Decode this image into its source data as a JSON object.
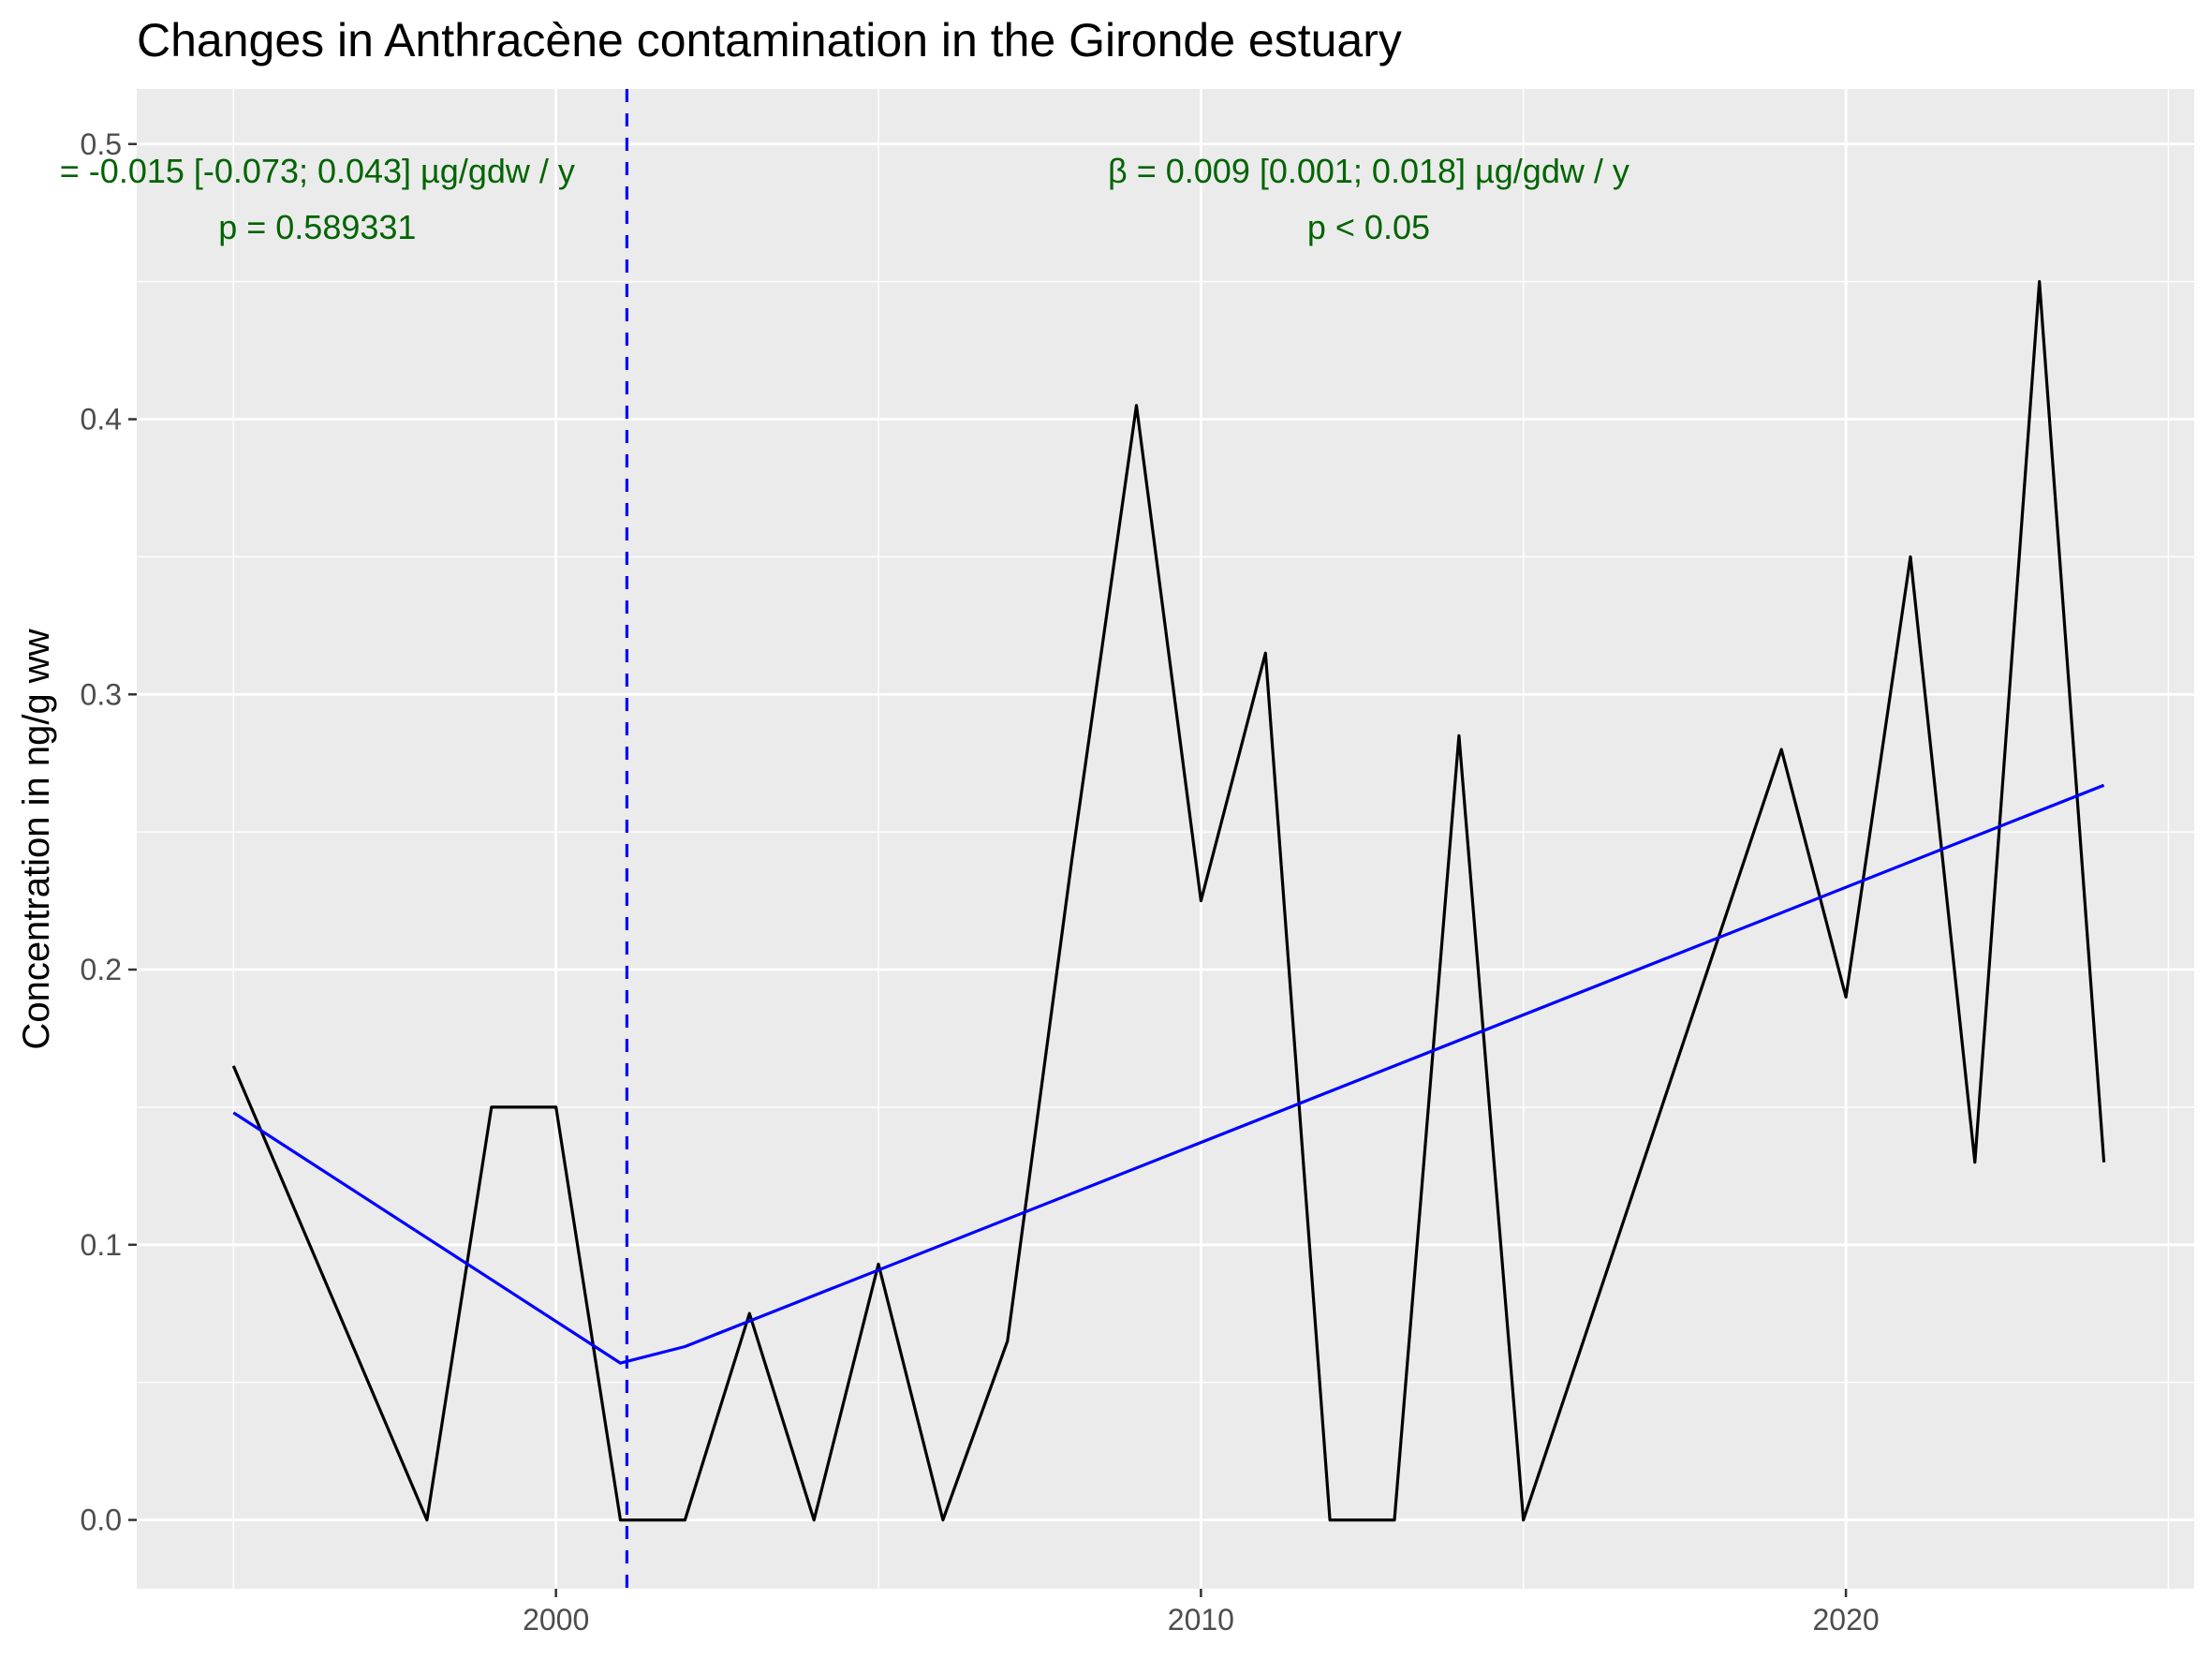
{
  "chart_data": {
    "type": "line",
    "title": "Changes in Anthracène contamination in the Gironde estuary",
    "xlabel": "",
    "ylabel": "Concentration in ng/g ww",
    "xlim": [
      1993.5,
      2025.4
    ],
    "ylim": [
      -0.025,
      0.52
    ],
    "x_ticks": [
      2000,
      2010,
      2020
    ],
    "x_tick_labels": [
      "2000",
      "2010",
      "2020"
    ],
    "x_minor_ticks": [
      1995,
      2005,
      2015,
      2025
    ],
    "y_ticks": [
      0.0,
      0.1,
      0.2,
      0.3,
      0.4,
      0.5
    ],
    "y_tick_labels": [
      "0.0",
      "0.1",
      "0.2",
      "0.3",
      "0.4",
      "0.5"
    ],
    "y_minor_ticks": [
      0.05,
      0.15,
      0.25,
      0.35,
      0.45
    ],
    "grid": true,
    "series": [
      {
        "color": "#000000",
        "x": [
          1995,
          1998,
          1999,
          2000,
          2001,
          2002,
          2003,
          2004,
          2005,
          2006,
          2007,
          2008,
          2009,
          2010,
          2011,
          2012,
          2013,
          2014,
          2015,
          2018,
          2019,
          2020,
          2021,
          2022,
          2023,
          2024
        ],
        "y": [
          0.165,
          0.0,
          0.15,
          0.15,
          0.0,
          0.0,
          0.075,
          0.0,
          0.093,
          0.0,
          0.065,
          0.24,
          0.405,
          0.225,
          0.315,
          0.0,
          0.0,
          0.285,
          0.0,
          0.21,
          0.28,
          0.19,
          0.35,
          0.13,
          0.45,
          0.13
        ]
      },
      {
        "color": "#0000ff",
        "x": [
          1995,
          2001,
          2002,
          2024
        ],
        "y": [
          0.148,
          0.057,
          0.063,
          0.267
        ]
      }
    ],
    "breakpoint": {
      "x": 2001.1,
      "color": "#0000ff",
      "style": "dashed"
    },
    "annotations": [
      {
        "lines": [
          "= -0.015 [-0.073; 0.043] µg/gdw / y",
          "p = 0.589331"
        ],
        "x": 1996.3,
        "y": 0.49,
        "color": "#006400"
      },
      {
        "lines": [
          "β = 0.009 [0.001; 0.018] µg/gdw / y",
          "p < 0.05"
        ],
        "x": 2012.6,
        "y": 0.49,
        "color": "#006400"
      }
    ]
  }
}
